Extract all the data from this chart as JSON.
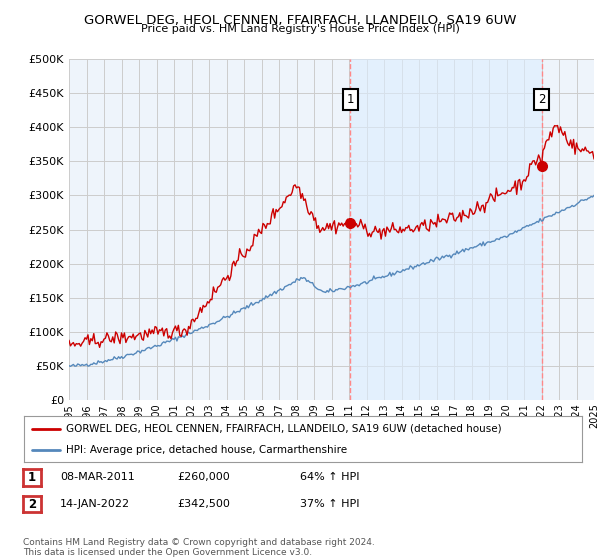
{
  "title": "GORWEL DEG, HEOL CENNEN, FFAIRFACH, LLANDEILO, SA19 6UW",
  "subtitle": "Price paid vs. HM Land Registry's House Price Index (HPI)",
  "ylim": [
    0,
    500000
  ],
  "yticks": [
    0,
    50000,
    100000,
    150000,
    200000,
    250000,
    300000,
    350000,
    400000,
    450000,
    500000
  ],
  "red_line_color": "#cc0000",
  "blue_line_color": "#5588bb",
  "shade_color": "#ddeeff",
  "marker_color": "#cc0000",
  "vline_color": "#ff8888",
  "annotation_box_color": "#cc3333",
  "legend_red": "GORWEL DEG, HEOL CENNEN, FFAIRFACH, LLANDEILO, SA19 6UW (detached house)",
  "legend_blue": "HPI: Average price, detached house, Carmarthenshire",
  "table_rows": [
    {
      "num": "1",
      "date": "08-MAR-2011",
      "price": "£260,000",
      "change": "64% ↑ HPI"
    },
    {
      "num": "2",
      "date": "14-JAN-2022",
      "price": "£342,500",
      "change": "37% ↑ HPI"
    }
  ],
  "footnote": "Contains HM Land Registry data © Crown copyright and database right 2024.\nThis data is licensed under the Open Government Licence v3.0.",
  "background_color": "#ffffff",
  "grid_color": "#cccccc",
  "sale1_idx": 193,
  "sale1_val": 260000,
  "sale2_idx": 324,
  "sale2_val": 342500,
  "n_months": 361,
  "start_year": 1995,
  "end_year": 2025
}
